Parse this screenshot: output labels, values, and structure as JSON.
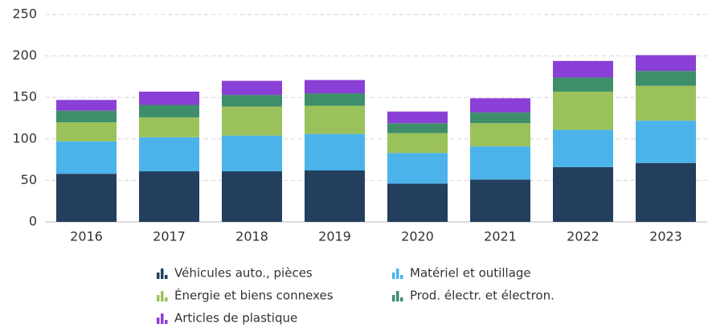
{
  "chart_data": {
    "type": "bar",
    "stacked": true,
    "categories": [
      "2016",
      "2017",
      "2018",
      "2019",
      "2020",
      "2021",
      "2022",
      "2023"
    ],
    "series": [
      {
        "name": "Véhicules auto., pièces",
        "color": "#243f5e",
        "values": [
          58,
          61,
          61,
          62,
          46,
          51,
          66,
          71
        ]
      },
      {
        "name": "Matériel et outillage",
        "color": "#4cb3ea",
        "values": [
          39,
          41,
          43,
          44,
          37,
          40,
          45,
          51
        ]
      },
      {
        "name": "Énergie et biens connexes",
        "color": "#9bc25a",
        "values": [
          23,
          24,
          35,
          34,
          24,
          28,
          46,
          42
        ]
      },
      {
        "name": "Prod. électr. et électron.",
        "color": "#3e8e6c",
        "values": [
          14,
          15,
          14,
          15,
          12,
          13,
          17,
          18
        ]
      },
      {
        "name": "Articles de plastique",
        "color": "#8a3fd6",
        "values": [
          13,
          16,
          17,
          16,
          14,
          17,
          20,
          19
        ]
      }
    ],
    "ylim": [
      0,
      250
    ],
    "yticks": [
      0,
      50,
      100,
      150,
      200,
      250
    ],
    "grid": true
  }
}
